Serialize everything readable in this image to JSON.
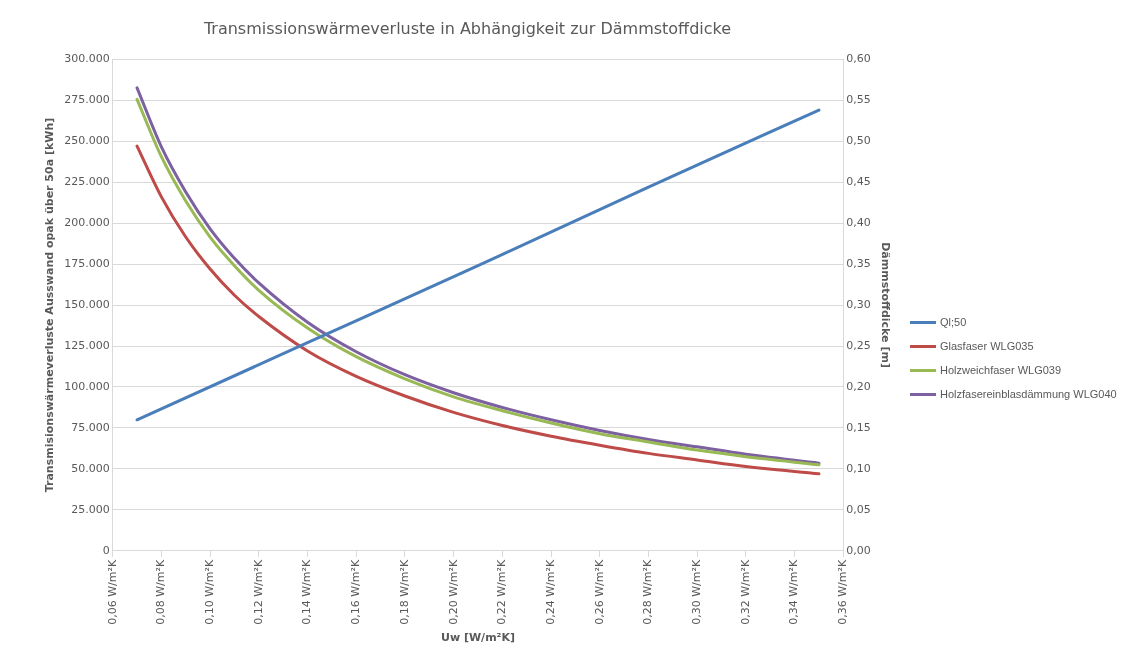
{
  "chart_data": {
    "type": "line",
    "title": "Transmissionswärmeverluste in Abhängigkeit zur Dämmstoffdicke",
    "xlabel": "Uw [W/m²K]",
    "ylabel": "Transmisionswärmeverluste Ausswand opak über 50a [kWh]",
    "y2label": "Dämmstoffdicke [m]",
    "xlim": [
      0.06,
      0.36
    ],
    "xticks": [
      {
        "value": 0.06,
        "label": "0,06 W/m²K"
      },
      {
        "value": 0.08,
        "label": "0,08 W/m²K"
      },
      {
        "value": 0.1,
        "label": "0,10 W/m²K"
      },
      {
        "value": 0.12,
        "label": "0,12 W/m²K"
      },
      {
        "value": 0.14,
        "label": "0,14 W/m²K"
      },
      {
        "value": 0.16,
        "label": "0,16 W/m²K"
      },
      {
        "value": 0.18,
        "label": "0,18 W/m²K"
      },
      {
        "value": 0.2,
        "label": "0,20 W/m²K"
      },
      {
        "value": 0.22,
        "label": "0,22 W/m²K"
      },
      {
        "value": 0.24,
        "label": "0,24 W/m²K"
      },
      {
        "value": 0.26,
        "label": "0,26 W/m²K"
      },
      {
        "value": 0.28,
        "label": "0,28 W/m²K"
      },
      {
        "value": 0.3,
        "label": "0,30 W/m²K"
      },
      {
        "value": 0.32,
        "label": "0,32 W/m²K"
      },
      {
        "value": 0.34,
        "label": "0,34 W/m²K"
      },
      {
        "value": 0.36,
        "label": "0,36 W/m²K"
      }
    ],
    "ylim": [
      0,
      300000
    ],
    "yticks": [
      0,
      {
        "value": 25000,
        "label": "25.000"
      },
      {
        "value": 50000,
        "label": "50.000"
      },
      {
        "value": 75000,
        "label": "75.000"
      },
      {
        "value": 100000,
        "label": "100.000"
      },
      {
        "value": 125000,
        "label": "125.000"
      },
      {
        "value": 150000,
        "label": "150.000"
      },
      {
        "value": 175000,
        "label": "175.000"
      },
      {
        "value": 200000,
        "label": "200.000"
      },
      {
        "value": 225000,
        "label": "225.000"
      },
      {
        "value": 250000,
        "label": "250.000"
      },
      {
        "value": 275000,
        "label": "275.000"
      },
      {
        "value": 300000,
        "label": "300.000"
      }
    ],
    "y2lim": [
      0,
      0.6
    ],
    "y2ticks": [
      {
        "value": 0,
        "label": "0,00"
      },
      {
        "value": 0.05,
        "label": "0,05"
      },
      {
        "value": 0.1,
        "label": "0,10"
      },
      {
        "value": 0.15,
        "label": "0,15"
      },
      {
        "value": 0.2,
        "label": "0,20"
      },
      {
        "value": 0.25,
        "label": "0,25"
      },
      {
        "value": 0.3,
        "label": "0,30"
      },
      {
        "value": 0.35,
        "label": "0,35"
      },
      {
        "value": 0.4,
        "label": "0,40"
      },
      {
        "value": 0.45,
        "label": "0,45"
      },
      {
        "value": 0.5,
        "label": "0,50"
      },
      {
        "value": 0.55,
        "label": "0,55"
      },
      {
        "value": 0.6,
        "label": "0,60"
      }
    ],
    "grid": "y",
    "legend": "right",
    "marker": "none",
    "line_style": "solid",
    "series": [
      {
        "name": "Ql;50",
        "color": "#4a7ebb",
        "x": [
          0.07,
          0.14,
          0.21,
          0.28,
          0.35
        ],
        "values": [
          80000,
          127000,
          174000,
          222000,
          269000
        ]
      },
      {
        "name": "Glasfaser WLG035",
        "color": "#be4b48",
        "axis": "y2",
        "x": [
          0.07,
          0.08,
          0.09,
          0.1,
          0.11,
          0.12,
          0.14,
          0.16,
          0.18,
          0.2,
          0.22,
          0.24,
          0.26,
          0.28,
          0.3,
          0.32,
          0.35
        ],
        "values": [
          0.494,
          0.432,
          0.383,
          0.344,
          0.312,
          0.286,
          0.244,
          0.213,
          0.189,
          0.169,
          0.153,
          0.14,
          0.129,
          0.119,
          0.111,
          0.103,
          0.094
        ]
      },
      {
        "name": "Holzweichfaser WLG039",
        "color": "#98b954",
        "axis": "y2",
        "x": [
          0.07,
          0.08,
          0.09,
          0.1,
          0.11,
          0.12,
          0.14,
          0.16,
          0.18,
          0.2,
          0.22,
          0.24,
          0.26,
          0.28,
          0.3,
          0.32,
          0.35
        ],
        "values": [
          0.551,
          0.481,
          0.427,
          0.383,
          0.348,
          0.318,
          0.272,
          0.237,
          0.21,
          0.188,
          0.171,
          0.156,
          0.143,
          0.133,
          0.123,
          0.115,
          0.105
        ]
      },
      {
        "name": "Holzfasereinblasdämmung WLG040",
        "color": "#7d60a0",
        "axis": "y2",
        "x": [
          0.07,
          0.08,
          0.09,
          0.1,
          0.11,
          0.12,
          0.14,
          0.16,
          0.18,
          0.2,
          0.22,
          0.24,
          0.26,
          0.28,
          0.3,
          0.32,
          0.35
        ],
        "values": [
          0.565,
          0.493,
          0.438,
          0.393,
          0.357,
          0.327,
          0.279,
          0.243,
          0.215,
          0.193,
          0.175,
          0.16,
          0.147,
          0.136,
          0.127,
          0.118,
          0.107
        ]
      }
    ]
  }
}
